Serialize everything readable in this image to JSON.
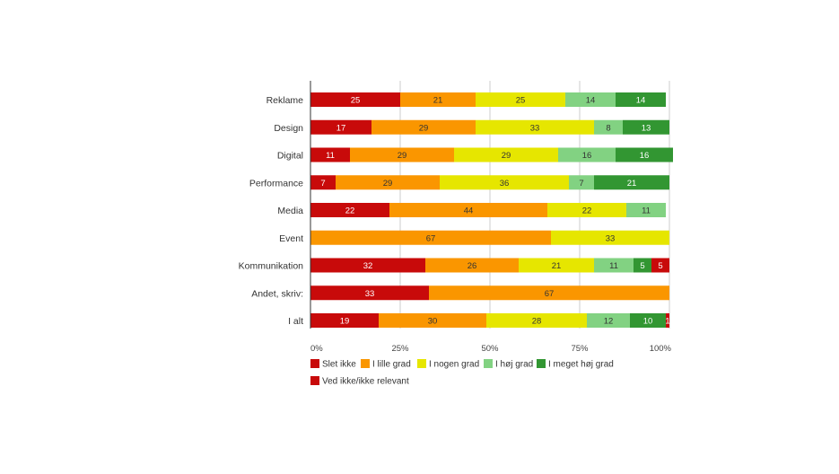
{
  "chart_data": {
    "type": "bar",
    "orientation": "horizontal",
    "stacked": "percent",
    "categories": [
      "Reklame",
      "Design",
      "Digital",
      "Performance",
      "Media",
      "Event",
      "Kommunikation",
      "Andet, skriv:",
      "I alt"
    ],
    "series": [
      {
        "name": "Slet ikke",
        "color": "#c80a0a",
        "values": [
          25,
          17,
          11,
          7,
          22,
          0,
          32,
          33,
          19
        ]
      },
      {
        "name": "I lille grad",
        "color": "#fa9600",
        "values": [
          21,
          29,
          29,
          29,
          44,
          67,
          26,
          67,
          30
        ]
      },
      {
        "name": "I nogen grad",
        "color": "#e6e600",
        "values": [
          25,
          33,
          29,
          36,
          22,
          33,
          21,
          0,
          28
        ]
      },
      {
        "name": "I høj grad",
        "color": "#82d282",
        "values": [
          14,
          8,
          16,
          7,
          11,
          0,
          11,
          0,
          12
        ]
      },
      {
        "name": "I meget høj grad",
        "color": "#329632",
        "values": [
          14,
          13,
          16,
          21,
          0,
          0,
          5,
          0,
          10
        ]
      },
      {
        "name": "Ved ikke/ikke relevant",
        "color": "#c80a0a",
        "values": [
          0,
          0,
          0,
          0,
          0,
          0,
          5,
          0,
          1
        ]
      }
    ],
    "xticks": [
      "0%",
      "25%",
      "50%",
      "75%",
      "100%"
    ],
    "xlim": [
      0,
      100
    ],
    "grid": true,
    "legend_position": "bottom",
    "title": "",
    "xlabel": "",
    "ylabel": ""
  }
}
